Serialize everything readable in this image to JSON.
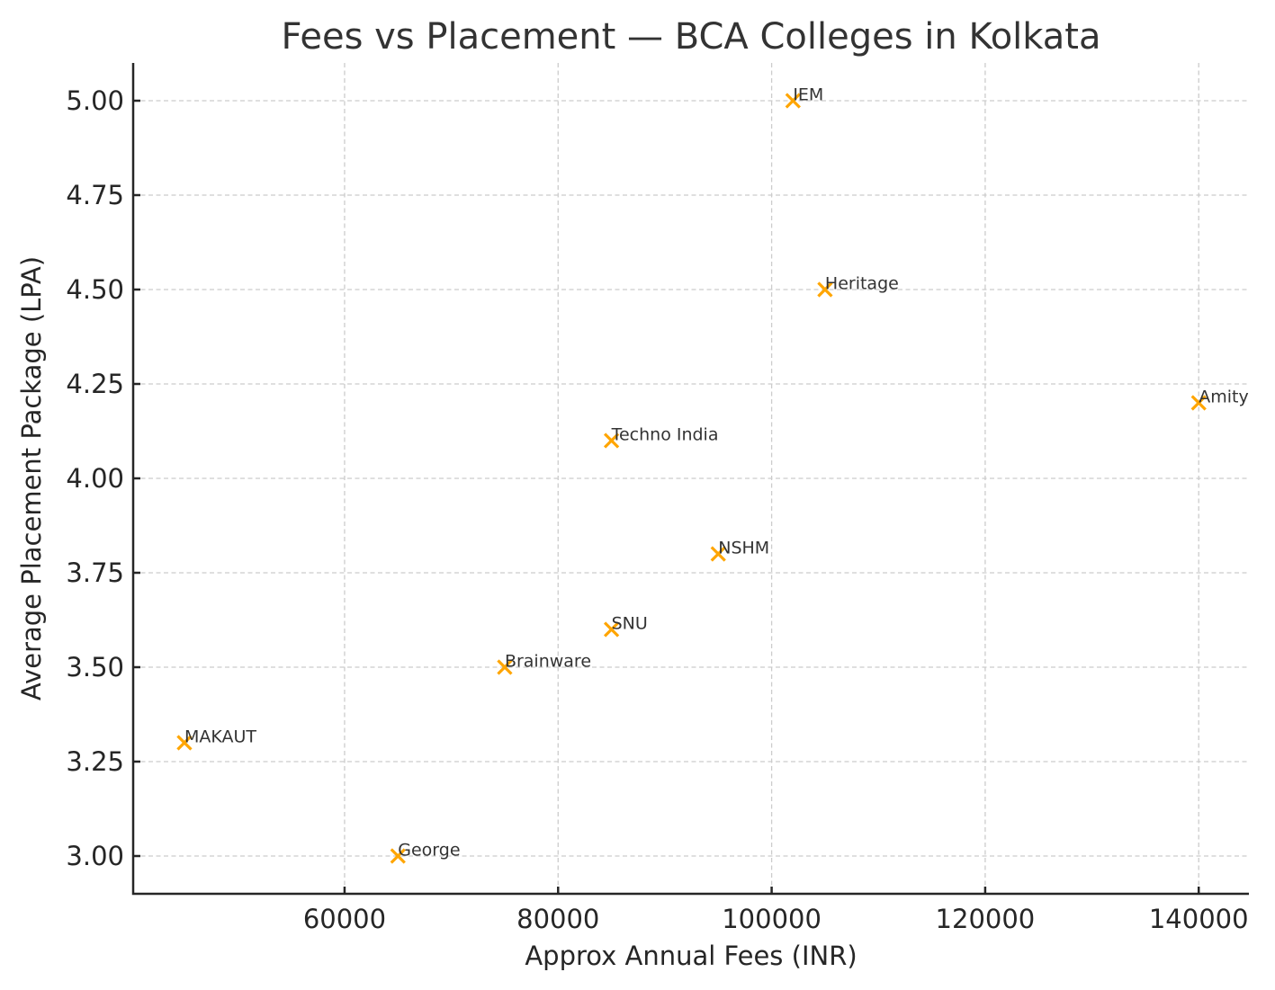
{
  "chart_data": {
    "type": "scatter",
    "title": "Fees vs Placement — BCA Colleges in Kolkata",
    "xlabel": "Approx Annual Fees (INR)",
    "ylabel": "Average Placement Package (LPA)",
    "xlim": [
      40200,
      144700
    ],
    "ylim": [
      2.9,
      5.1
    ],
    "xticks": [
      60000,
      80000,
      100000,
      120000,
      140000
    ],
    "xtick_labels": [
      "60000",
      "80000",
      "100000",
      "120000",
      "140000"
    ],
    "yticks": [
      3.0,
      3.25,
      3.5,
      3.75,
      4.0,
      4.25,
      4.5,
      4.75,
      5.0
    ],
    "ytick_labels": [
      "3.00",
      "3.25",
      "3.50",
      "3.75",
      "4.00",
      "4.25",
      "4.50",
      "4.75",
      "5.00"
    ],
    "grid": true,
    "legend": null,
    "marker": "x",
    "marker_color": "#FFA500",
    "points": [
      {
        "label": "MAKAUT",
        "x": 45000,
        "y": 3.3
      },
      {
        "label": "George",
        "x": 65000,
        "y": 3.0
      },
      {
        "label": "Brainware",
        "x": 75000,
        "y": 3.5
      },
      {
        "label": "SNU",
        "x": 85000,
        "y": 3.6
      },
      {
        "label": "Techno India",
        "x": 85000,
        "y": 4.1
      },
      {
        "label": "NSHM",
        "x": 95000,
        "y": 3.8
      },
      {
        "label": "IEM",
        "x": 102000,
        "y": 5.0
      },
      {
        "label": "Heritage",
        "x": 105000,
        "y": 4.5
      },
      {
        "label": "Amity",
        "x": 140000,
        "y": 4.2
      }
    ]
  }
}
